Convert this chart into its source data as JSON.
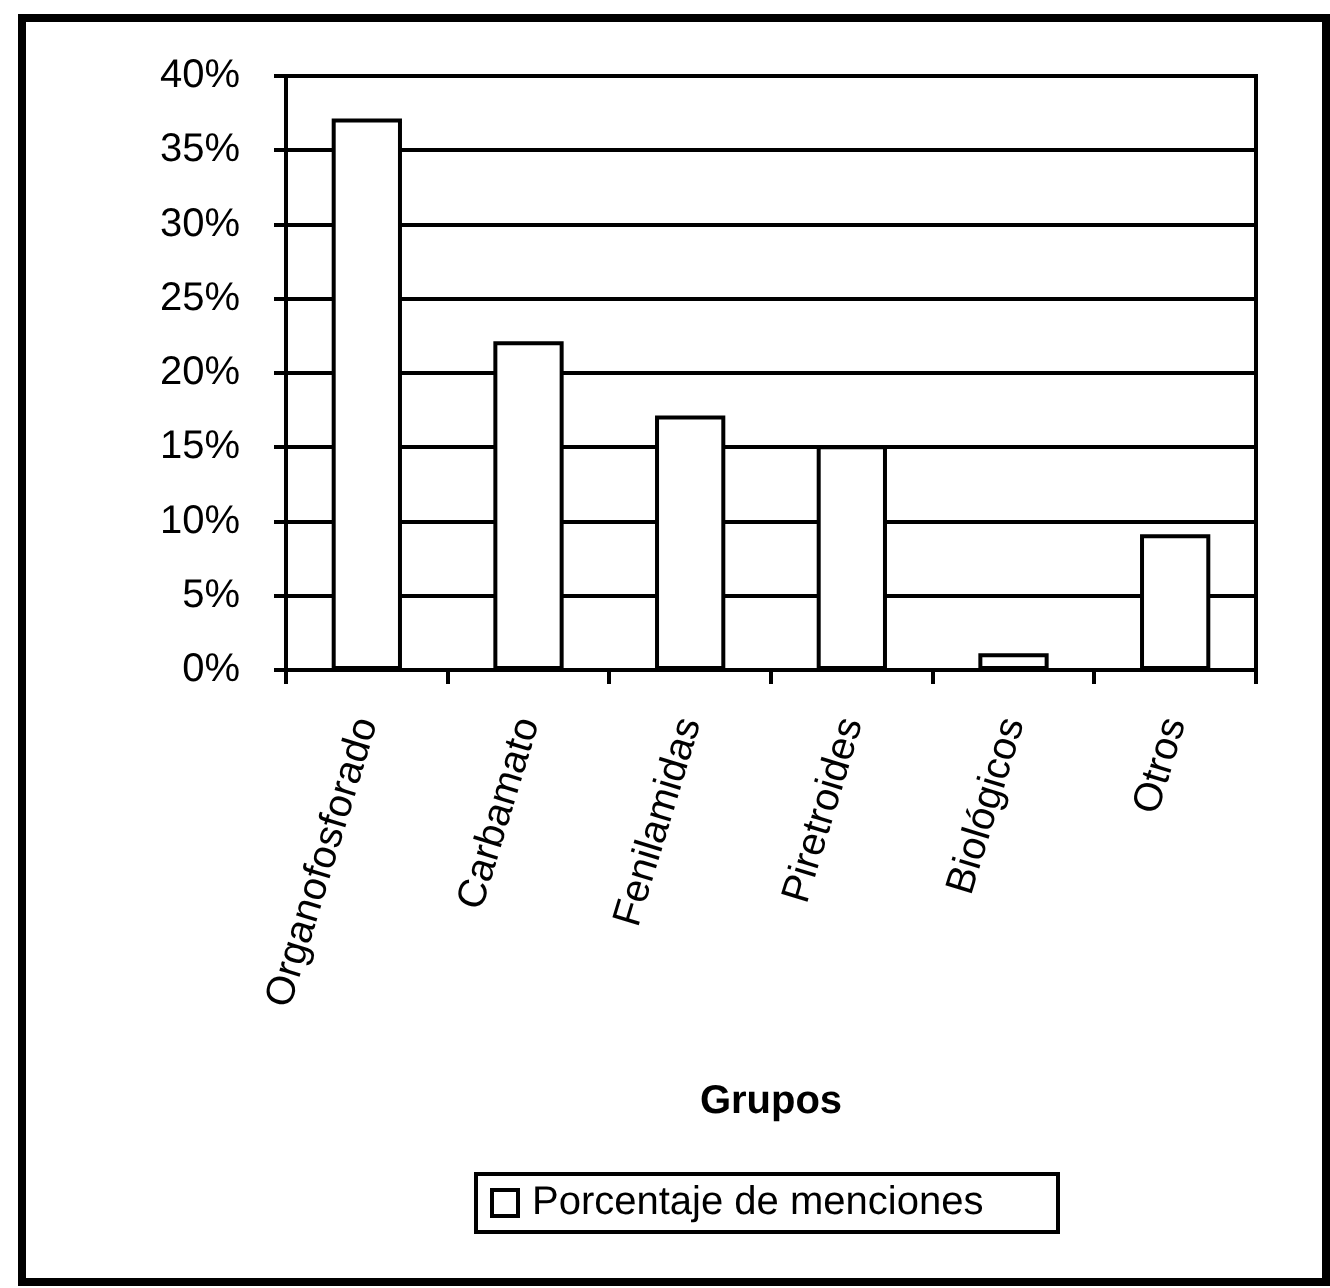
{
  "chart_data": {
    "type": "bar",
    "xlabel": "Grupos",
    "categories": [
      "Organofosforado",
      "Carbamato",
      "Fenilamidas",
      "Piretroides",
      "Biológicos",
      "Otros"
    ],
    "series": [
      {
        "name": "Porcentaje de menciones",
        "color": "#ffffff",
        "values": [
          37,
          22,
          17,
          15,
          1,
          9
        ]
      }
    ],
    "ylim": [
      0,
      40
    ],
    "yticks": [
      {
        "value": 0,
        "label": "0%"
      },
      {
        "value": 5,
        "label": "5%"
      },
      {
        "value": 10,
        "label": "10%"
      },
      {
        "value": 15,
        "label": "15%"
      },
      {
        "value": 20,
        "label": "20%"
      },
      {
        "value": 25,
        "label": "25%"
      },
      {
        "value": 30,
        "label": "30%"
      },
      {
        "value": 35,
        "label": "35%"
      },
      {
        "value": 40,
        "label": "40%"
      }
    ],
    "grid": "y",
    "legend": "bottom"
  }
}
